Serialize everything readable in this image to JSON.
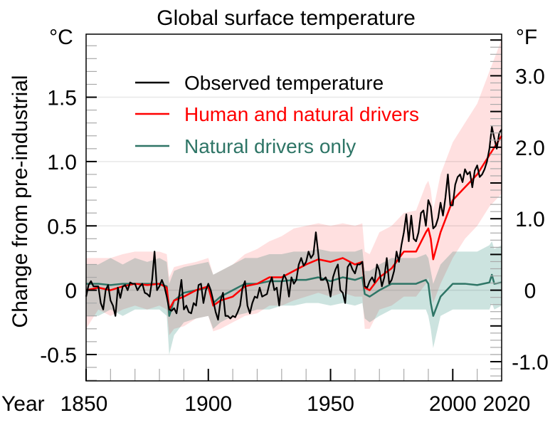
{
  "chart_data": {
    "type": "line",
    "title": "Global surface temperature",
    "ylabel": "Change from pre-industrial",
    "xlabel": "Year",
    "y_unit_left": "°C",
    "y_unit_right": "°F",
    "xlim": [
      1850,
      2020
    ],
    "ylim": [
      -0.705,
      1.99
    ],
    "x_ticks": [
      "1850",
      "1900",
      "1950",
      "2000",
      "2020"
    ],
    "y_ticks_left": [
      {
        "v": 1.5,
        "label": "1.5"
      },
      {
        "v": 1.0,
        "label": "1.0"
      },
      {
        "v": 0.5,
        "label": "0.5"
      },
      {
        "v": 0,
        "label": "0"
      },
      {
        "v": -0.5,
        "label": "-0.5"
      }
    ],
    "y_ticks_right": [
      {
        "v": 3.0,
        "label": "3.0"
      },
      {
        "v": 2.0,
        "label": "2.0"
      },
      {
        "v": 1.0,
        "label": "1.0"
      },
      {
        "v": 0,
        "label": "0"
      },
      {
        "v": -1.0,
        "label": "-1.0"
      }
    ],
    "grid": true,
    "legend_position": "top-left",
    "series": [
      {
        "name": "Observed temperature",
        "color": "#000000",
        "start_year": 1850,
        "values": [
          -0.05,
          0.04,
          0.07,
          0.03,
          0.03,
          0.03,
          -0.1,
          -0.15,
          0.0,
          0.04,
          -0.08,
          -0.12,
          -0.2,
          0.02,
          -0.06,
          0.03,
          0.04,
          0.0,
          0.06,
          0.05,
          0.05,
          0.0,
          0.03,
          0.05,
          -0.02,
          -0.03,
          -0.05,
          0.08,
          0.3,
          0.0,
          0.03,
          0.08,
          0.03,
          -0.05,
          -0.15,
          -0.16,
          -0.14,
          -0.18,
          -0.05,
          0.08,
          -0.15,
          -0.12,
          -0.17,
          -0.18,
          -0.1,
          -0.12,
          0.04,
          0.05,
          -0.1,
          0.0,
          0.05,
          0.0,
          -0.08,
          -0.17,
          -0.23,
          -0.08,
          -0.02,
          -0.2,
          -0.2,
          -0.22,
          -0.2,
          -0.21,
          -0.17,
          -0.12,
          0.02,
          0.07,
          -0.12,
          -0.18,
          -0.1,
          -0.05,
          -0.06,
          0.02,
          -0.05,
          -0.04,
          -0.03,
          0.05,
          0.1,
          0.0,
          0.02,
          -0.12,
          0.06,
          0.12,
          0.08,
          -0.05,
          0.1,
          0.05,
          0.08,
          0.2,
          0.25,
          0.19,
          0.22,
          0.3,
          0.25,
          0.28,
          0.45,
          0.28,
          0.08,
          0.08,
          0.1,
          0.05,
          -0.05,
          0.1,
          0.16,
          0.2,
          0.0,
          -0.02,
          -0.1,
          0.18,
          0.21,
          0.16,
          0.13,
          0.2,
          0.2,
          0.22,
          0.03,
          0.02,
          0.07,
          0.1,
          0.06,
          0.2,
          0.15,
          0.03,
          0.1,
          0.25,
          0.05,
          0.08,
          0.15,
          0.3,
          0.22,
          0.35,
          0.45,
          0.59,
          0.38,
          0.58,
          0.4,
          0.38,
          0.45,
          0.6,
          0.62,
          0.5,
          0.7,
          0.65,
          0.48,
          0.5,
          0.56,
          0.68,
          0.58,
          0.72,
          0.9,
          0.66,
          0.66,
          0.82,
          0.88,
          0.9,
          0.84,
          0.94,
          0.9,
          0.92,
          0.8,
          0.93,
          0.97,
          0.88,
          0.9,
          0.94,
          1.0,
          1.1,
          1.27,
          1.18,
          1.1,
          1.22,
          1.25
        ]
      },
      {
        "name": "Human and natural drivers",
        "color": "#ff0000",
        "band_color": "#ffd0d0",
        "years": [
          1850,
          1855,
          1860,
          1865,
          1870,
          1875,
          1880,
          1883,
          1884,
          1886,
          1890,
          1895,
          1900,
          1902,
          1905,
          1910,
          1915,
          1920,
          1925,
          1930,
          1935,
          1940,
          1945,
          1950,
          1955,
          1960,
          1963,
          1964,
          1966,
          1970,
          1975,
          1980,
          1985,
          1989,
          1990,
          1991,
          1992,
          1995,
          2000,
          2005,
          2010,
          2015,
          2020
        ],
        "values": [
          0.0,
          0.02,
          0.0,
          0.03,
          0.05,
          0.04,
          0.05,
          0.02,
          -0.15,
          -0.08,
          -0.05,
          0.0,
          0.03,
          -0.12,
          -0.08,
          -0.05,
          0.03,
          0.05,
          0.1,
          0.1,
          0.15,
          0.2,
          0.24,
          0.22,
          0.25,
          0.2,
          0.22,
          0.02,
          0.0,
          0.1,
          0.17,
          0.3,
          0.3,
          0.45,
          0.48,
          0.4,
          0.24,
          0.45,
          0.7,
          0.8,
          0.9,
          1.05,
          1.2
        ],
        "lower": [
          -0.3,
          -0.15,
          -0.2,
          -0.15,
          -0.12,
          -0.15,
          -0.12,
          -0.15,
          -0.35,
          -0.3,
          -0.28,
          -0.22,
          -0.2,
          -0.32,
          -0.3,
          -0.25,
          -0.2,
          -0.18,
          -0.12,
          -0.12,
          -0.08,
          -0.05,
          -0.02,
          -0.05,
          -0.02,
          -0.05,
          -0.05,
          -0.3,
          -0.3,
          -0.15,
          -0.12,
          -0.05,
          -0.05,
          0.05,
          0.1,
          0.0,
          -0.1,
          0.05,
          0.25,
          0.4,
          0.5,
          0.65,
          0.75
        ],
        "upper": [
          0.25,
          0.25,
          0.25,
          0.28,
          0.3,
          0.3,
          0.3,
          0.28,
          0.1,
          0.18,
          0.2,
          0.22,
          0.25,
          0.12,
          0.15,
          0.2,
          0.28,
          0.32,
          0.38,
          0.42,
          0.48,
          0.5,
          0.52,
          0.5,
          0.52,
          0.5,
          0.52,
          0.3,
          0.28,
          0.45,
          0.5,
          0.6,
          0.62,
          0.82,
          0.85,
          0.78,
          0.62,
          0.9,
          1.15,
          1.3,
          1.45,
          1.7,
          1.95
        ]
      },
      {
        "name": "Natural drivers only",
        "color": "#2e7566",
        "band_color": "#c7e0dc",
        "years": [
          1850,
          1855,
          1860,
          1865,
          1870,
          1875,
          1880,
          1883,
          1884,
          1886,
          1890,
          1895,
          1900,
          1902,
          1905,
          1910,
          1915,
          1920,
          1925,
          1930,
          1935,
          1940,
          1945,
          1950,
          1955,
          1960,
          1963,
          1964,
          1966,
          1970,
          1975,
          1980,
          1985,
          1989,
          1990,
          1991,
          1992,
          1995,
          2000,
          2005,
          2010,
          2015,
          2016,
          2017,
          2020
        ],
        "values": [
          0.05,
          0.05,
          0.04,
          0.05,
          0.05,
          0.05,
          0.05,
          0.03,
          -0.2,
          -0.08,
          -0.02,
          0.0,
          0.02,
          -0.1,
          -0.05,
          0.0,
          0.05,
          0.05,
          0.07,
          0.07,
          0.08,
          0.08,
          0.1,
          0.07,
          0.1,
          0.08,
          0.1,
          -0.03,
          -0.05,
          0.0,
          0.05,
          0.05,
          0.05,
          0.08,
          0.05,
          -0.1,
          -0.2,
          -0.05,
          0.05,
          0.05,
          0.04,
          0.06,
          0.12,
          0.05,
          0.06
        ],
        "lower": [
          -0.2,
          -0.2,
          -0.15,
          -0.2,
          -0.15,
          -0.15,
          -0.15,
          -0.2,
          -0.5,
          -0.35,
          -0.25,
          -0.22,
          -0.2,
          -0.3,
          -0.25,
          -0.2,
          -0.18,
          -0.15,
          -0.15,
          -0.12,
          -0.12,
          -0.1,
          -0.1,
          -0.12,
          -0.1,
          -0.12,
          -0.1,
          -0.22,
          -0.25,
          -0.2,
          -0.15,
          -0.15,
          -0.15,
          -0.15,
          -0.2,
          -0.3,
          -0.45,
          -0.2,
          -0.15,
          -0.15,
          -0.15,
          -0.15,
          -0.1,
          -0.15,
          -0.12
        ],
        "upper": [
          0.2,
          0.2,
          0.25,
          0.2,
          0.25,
          0.22,
          0.25,
          0.22,
          0.05,
          0.15,
          0.18,
          0.2,
          0.22,
          0.12,
          0.15,
          0.2,
          0.25,
          0.25,
          0.28,
          0.28,
          0.3,
          0.3,
          0.32,
          0.3,
          0.3,
          0.3,
          0.32,
          0.15,
          0.15,
          0.2,
          0.25,
          0.25,
          0.25,
          0.28,
          0.25,
          0.15,
          0.05,
          0.2,
          0.3,
          0.3,
          0.3,
          0.35,
          0.38,
          0.32,
          0.35
        ]
      }
    ]
  }
}
